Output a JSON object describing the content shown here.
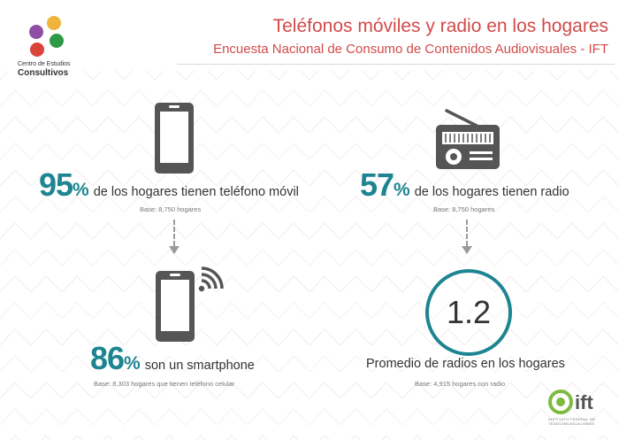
{
  "header": {
    "title": "Teléfonos móviles y radio en los hogares",
    "subtitle": "Encuesta Nacional de Consumo de Contenidos Audiovisuales - IFT"
  },
  "logo": {
    "line1": "Centro de Estudios",
    "line2": "Consultivos",
    "colors": [
      "#f0b43c",
      "#8e4ea6",
      "#2e9a47",
      "#d9433a"
    ]
  },
  "left": {
    "stat1": {
      "value": "95",
      "unit": "%",
      "text": "de los hogares tienen teléfono móvil",
      "base": "Base: 8,750 hogares"
    },
    "stat2": {
      "value": "86",
      "unit": "%",
      "text": "son un smartphone",
      "base": "Base: 8,303 hogares que tienen teléfono celular"
    }
  },
  "right": {
    "stat1": {
      "value": "57",
      "unit": "%",
      "text": "de los hogares tienen radio",
      "base": "Base: 8,750 hogares"
    },
    "average": {
      "value": "1.2",
      "text": "Promedio de radios en los hogares",
      "base": "Base: 4,915 hogares con radio"
    }
  },
  "footer_logo": {
    "text": "ift",
    "small_line1": "INSTITUTO FEDERAL DE",
    "small_line2": "TELECOMUNICACIONES"
  },
  "icons": [
    "mobile-phone-icon",
    "smartphone-wifi-icon",
    "radio-icon"
  ],
  "colors": {
    "accent": "#1d8591",
    "title": "#d24a4a",
    "icon": "#555555"
  }
}
